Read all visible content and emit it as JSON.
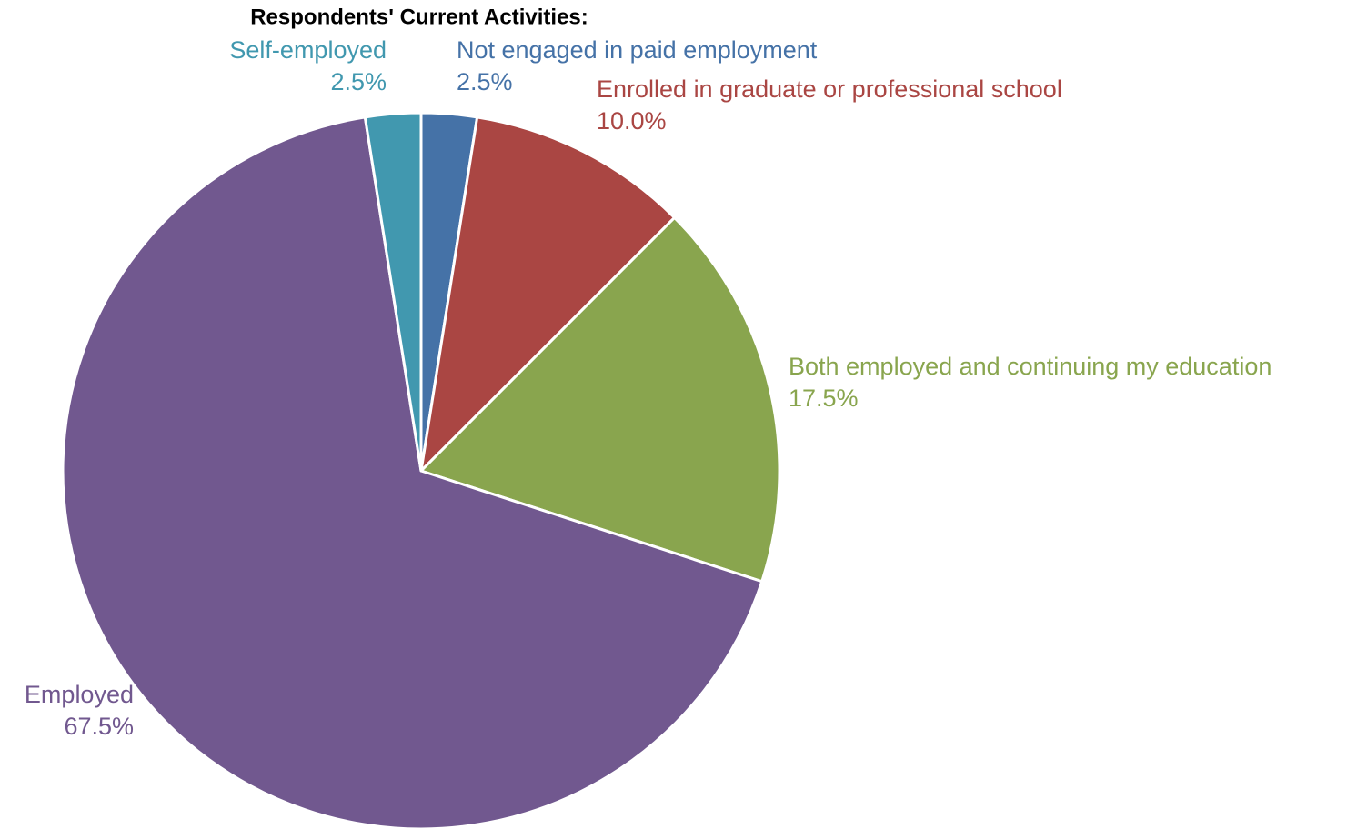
{
  "chart_data": {
    "type": "pie",
    "title": "Respondents' Current Activities:",
    "categories": [
      "Not engaged in paid employment",
      "Enrolled in graduate or professional school",
      "Both employed and continuing my education",
      "Employed",
      "Self-employed"
    ],
    "values": [
      2.5,
      10.0,
      17.5,
      67.5,
      2.5
    ],
    "value_labels": [
      "2.5%",
      "10.0%",
      "17.5%",
      "67.5%",
      "2.5%"
    ],
    "colors": [
      "#4572a7",
      "#aa4643",
      "#89a54e",
      "#71588f",
      "#4198af"
    ]
  }
}
